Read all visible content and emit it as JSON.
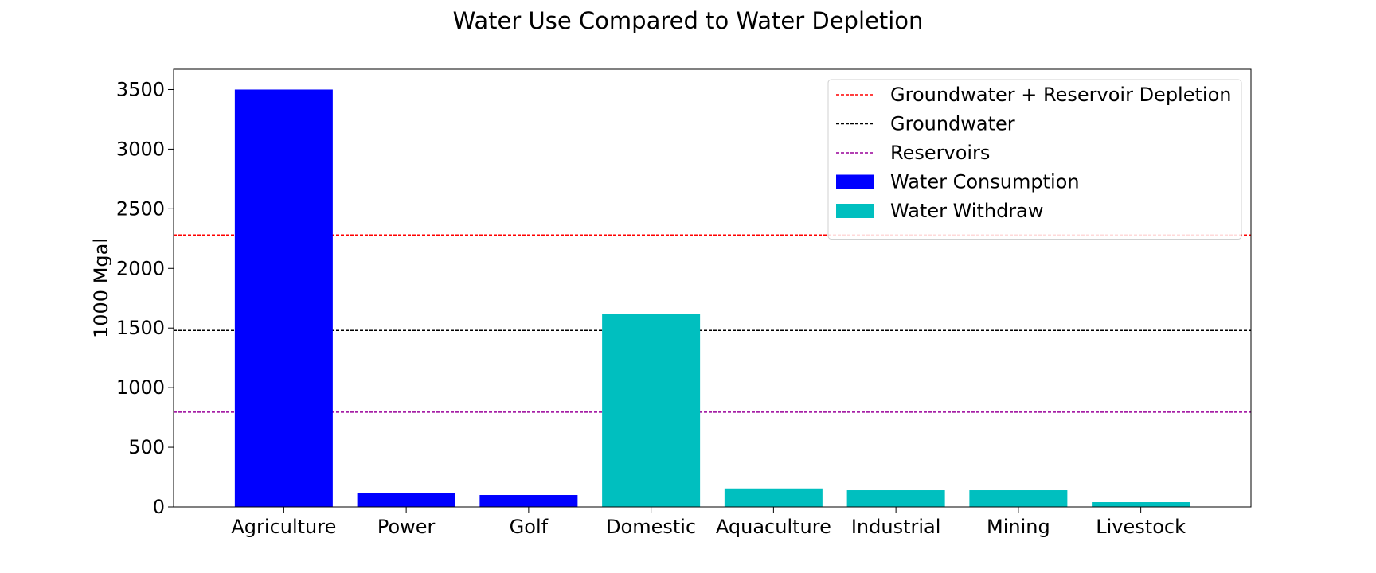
{
  "chart_data": {
    "type": "bar",
    "title": "Water Use Compared to Water Depletion",
    "xlabel": "",
    "ylabel": "1000 Mgal",
    "ylim": [
      0,
      3670
    ],
    "yticks": [
      0,
      500,
      1000,
      1500,
      2000,
      2500,
      3000,
      3500
    ],
    "categories": [
      "Agriculture",
      "Power",
      "Golf",
      "Domestic",
      "Aquaculture",
      "Industrial",
      "Mining",
      "Livestock"
    ],
    "bars": [
      {
        "category": "Agriculture",
        "value": 3500,
        "series": "Water Consumption"
      },
      {
        "category": "Power",
        "value": 115,
        "series": "Water Consumption"
      },
      {
        "category": "Golf",
        "value": 100,
        "series": "Water Consumption"
      },
      {
        "category": "Domestic",
        "value": 1620,
        "series": "Water Withdraw"
      },
      {
        "category": "Aquaculture",
        "value": 155,
        "series": "Water Withdraw"
      },
      {
        "category": "Industrial",
        "value": 140,
        "series": "Water Withdraw"
      },
      {
        "category": "Mining",
        "value": 140,
        "series": "Water Withdraw"
      },
      {
        "category": "Livestock",
        "value": 40,
        "series": "Water Withdraw"
      }
    ],
    "series": [
      {
        "name": "Water Consumption",
        "color": "#0000ff"
      },
      {
        "name": "Water Withdraw",
        "color": "#00bfbf"
      }
    ],
    "reference_lines": [
      {
        "name": "Groundwater + Reservoir Depletion",
        "value": 2280,
        "color": "#ff0000",
        "style": "dashed"
      },
      {
        "name": "Groundwater",
        "value": 1480,
        "color": "#000000",
        "style": "dashed"
      },
      {
        "name": "Reservoirs",
        "value": 795,
        "color": "#990099",
        "style": "dashed"
      }
    ],
    "legend_placement": "top-right",
    "grid": false
  }
}
